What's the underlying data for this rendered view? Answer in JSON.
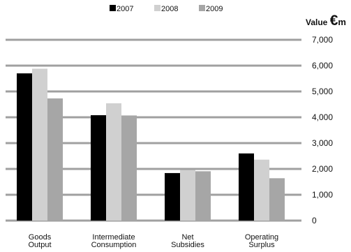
{
  "chart_data": {
    "type": "bar",
    "title": "",
    "xlabel": "",
    "ylabel": {
      "prefix": "Value ",
      "symbol": "€",
      "suffix": "m"
    },
    "categories": [
      [
        "Goods",
        "Output"
      ],
      [
        "Intermediate",
        "Consumption"
      ],
      [
        "Net",
        "Subsidies"
      ],
      [
        "Operating",
        "Surplus"
      ]
    ],
    "series": [
      {
        "name": "2007",
        "color": "#000000",
        "values": [
          5700,
          4080,
          1840,
          2600
        ]
      },
      {
        "name": "2008",
        "color": "#d0d0d0",
        "values": [
          5880,
          4540,
          1960,
          2360
        ]
      },
      {
        "name": "2009",
        "color": "#a6a6a6",
        "values": [
          4730,
          4070,
          1910,
          1640
        ]
      }
    ],
    "ylim": [
      0,
      7000
    ],
    "yticks": [
      0,
      1000,
      2000,
      3000,
      4000,
      5000,
      6000,
      7000
    ],
    "ytick_labels": [
      "0",
      "1,000",
      "2,000",
      "3,000",
      "4,000",
      "5,000",
      "6,000",
      "7,000"
    ],
    "y_axis_side": "right",
    "grid": true,
    "gridline_color": "#a0a0a0",
    "legend_position": "top-center"
  }
}
